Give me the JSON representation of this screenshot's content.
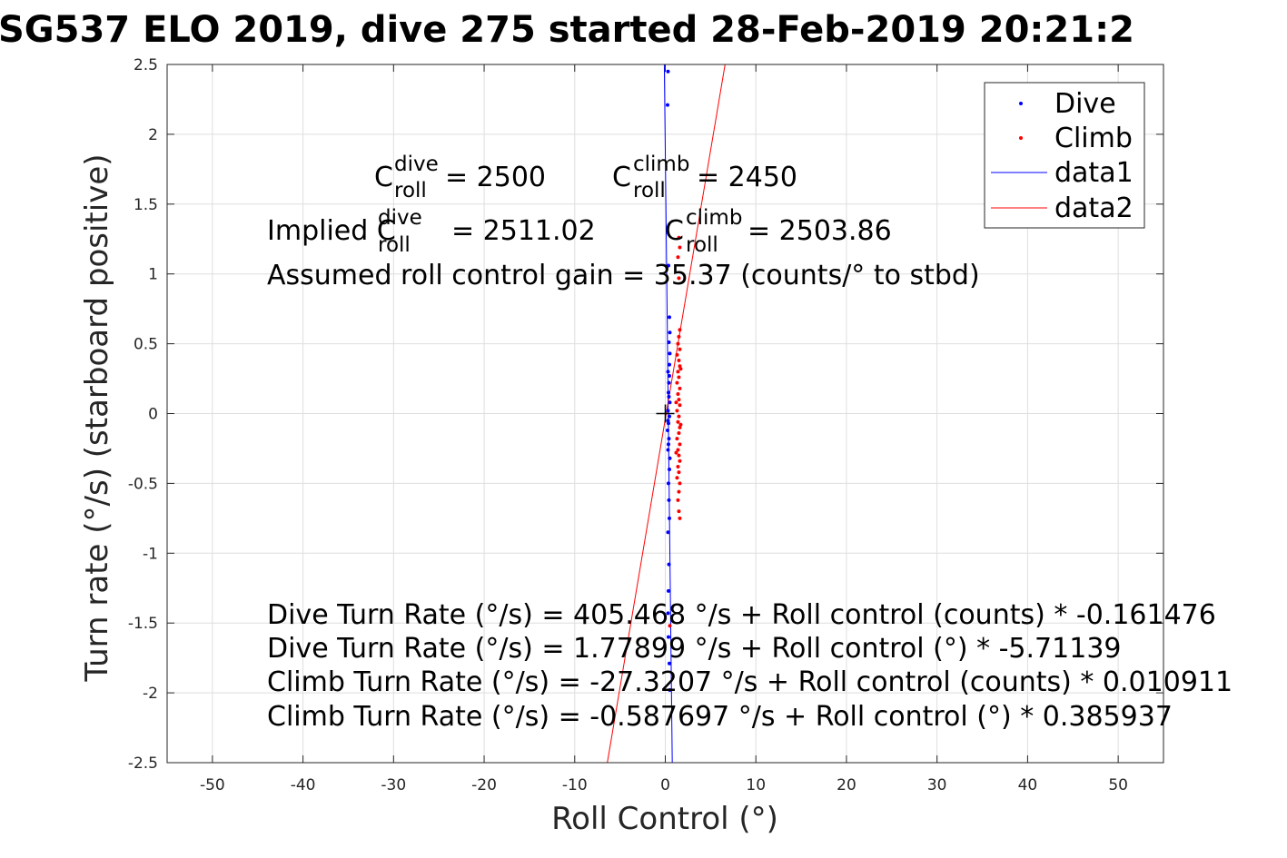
{
  "chart_data": {
    "type": "scatter",
    "title": "SG537 ELO 2019, dive 275 started 28-Feb-2019 20:21:2",
    "xlabel": "Roll Control (°)",
    "ylabel": "Turn rate (°/s) (starboard positive)",
    "xlim": [
      -55,
      55
    ],
    "ylim": [
      -2.5,
      2.5
    ],
    "xticks": [
      -50,
      -40,
      -30,
      -20,
      -10,
      0,
      10,
      20,
      30,
      40,
      50
    ],
    "yticks": [
      -2.5,
      -2,
      -1.5,
      -1,
      -0.5,
      0,
      0.5,
      1,
      1.5,
      2,
      2.5
    ],
    "xtick_labels": [
      "-50",
      "-40",
      "-30",
      "-20",
      "-10",
      "0",
      "10",
      "20",
      "30",
      "40",
      "50"
    ],
    "ytick_labels": [
      "-2.5",
      "-2",
      "-1.5",
      "-1",
      "-0.5",
      "0",
      "0.5",
      "1",
      "1.5",
      "2",
      "2.5"
    ],
    "grid": true,
    "legend_position": "top-right",
    "series": [
      {
        "name": "Dive",
        "kind": "points",
        "color": "#0000ff",
        "points": [
          [
            0.3,
            2.45
          ],
          [
            0.25,
            2.21
          ],
          [
            0.35,
            1.06
          ],
          [
            0.45,
            0.69
          ],
          [
            0.5,
            0.58
          ],
          [
            0.4,
            0.51
          ],
          [
            0.5,
            0.43
          ],
          [
            0.45,
            0.35
          ],
          [
            0.3,
            0.3
          ],
          [
            0.4,
            0.22
          ],
          [
            0.35,
            0.15
          ],
          [
            0.5,
            0.08
          ],
          [
            0.3,
            0.02
          ],
          [
            0.45,
            -0.02
          ],
          [
            0.35,
            -0.07
          ],
          [
            0.25,
            -0.12
          ],
          [
            0.4,
            -0.18
          ],
          [
            0.3,
            -0.26
          ],
          [
            0.5,
            -0.32
          ],
          [
            0.45,
            -0.4
          ],
          [
            0.35,
            -0.5
          ],
          [
            0.4,
            -0.62
          ],
          [
            0.45,
            -0.75
          ],
          [
            0.4,
            -1.08
          ],
          [
            0.35,
            -1.27
          ],
          [
            0.3,
            -1.43
          ],
          [
            0.35,
            -1.6
          ],
          [
            0.45,
            -1.79
          ],
          [
            0.5,
            -1.98
          ],
          [
            0.3,
            -0.85
          ],
          [
            0.4,
            0.12
          ],
          [
            0.35,
            -0.22
          ],
          [
            0.45,
            0.27
          ],
          [
            0.3,
            -0.05
          ]
        ]
      },
      {
        "name": "Climb",
        "kind": "points",
        "color": "#ff0000",
        "points": [
          [
            1.5,
            1.26
          ],
          [
            1.6,
            1.19
          ],
          [
            1.4,
            1.12
          ],
          [
            1.5,
            0.97
          ],
          [
            1.6,
            0.6
          ],
          [
            1.5,
            0.55
          ],
          [
            1.4,
            0.5
          ],
          [
            1.6,
            0.46
          ],
          [
            1.3,
            0.42
          ],
          [
            1.5,
            0.38
          ],
          [
            1.6,
            0.34
          ],
          [
            1.4,
            0.3
          ],
          [
            1.5,
            0.26
          ],
          [
            1.3,
            0.22
          ],
          [
            1.6,
            0.18
          ],
          [
            1.4,
            0.14
          ],
          [
            1.5,
            0.1
          ],
          [
            1.6,
            0.06
          ],
          [
            1.3,
            0.02
          ],
          [
            1.5,
            -0.02
          ],
          [
            1.4,
            -0.06
          ],
          [
            1.6,
            -0.1
          ],
          [
            1.5,
            -0.14
          ],
          [
            1.3,
            -0.18
          ],
          [
            1.6,
            -0.22
          ],
          [
            1.4,
            -0.26
          ],
          [
            1.5,
            -0.3
          ],
          [
            1.6,
            -0.34
          ],
          [
            1.4,
            -0.38
          ],
          [
            1.5,
            -0.42
          ],
          [
            1.3,
            -0.46
          ],
          [
            1.6,
            -0.5
          ],
          [
            1.5,
            -0.56
          ],
          [
            1.4,
            -0.62
          ],
          [
            1.5,
            -0.7
          ],
          [
            1.6,
            -0.75
          ],
          [
            1.2,
            0.08
          ],
          [
            1.7,
            -0.08
          ],
          [
            1.2,
            -0.28
          ],
          [
            1.7,
            0.32
          ],
          [
            0.5,
            -1.52
          ]
        ]
      },
      {
        "name": "data1",
        "kind": "line",
        "color": "#0000ff",
        "points": [
          [
            -0.11,
            2.5
          ],
          [
            0.77,
            -2.5
          ]
        ]
      },
      {
        "name": "data2",
        "kind": "line",
        "color": "#ff0000",
        "points": [
          [
            6.6,
            2.5
          ],
          [
            -6.4,
            -2.5
          ]
        ]
      }
    ],
    "marker": {
      "label": "+",
      "x": 0,
      "y": 0
    },
    "annotations": {
      "c_dive_main": "C",
      "c_dive_sup": "dive",
      "c_dive_sub": "roll",
      "c_dive_val": " = 2500",
      "c_climb_main": "C",
      "c_climb_sup": "climb",
      "c_climb_sub": "roll",
      "c_climb_val": " = 2450",
      "implied_prefix": "Implied C",
      "implied_dive_sup": "dive",
      "implied_dive_sub": "roll",
      "implied_dive_val": " = 2511.02",
      "implied_climb_main": "C",
      "implied_climb_sup": "climb",
      "implied_climb_sub": "roll",
      "implied_climb_val": " = 2503.86",
      "gain": "Assumed roll control gain = 35.37 (counts/° to stbd)",
      "eq1": "Dive Turn Rate (°/s) = 405.468 °/s + Roll control (counts) * -0.161476",
      "eq2": "Dive Turn Rate (°/s) = 1.77899 °/s + Roll control (°) * -5.71139",
      "eq3": "Climb Turn Rate (°/s) = -27.3207 °/s + Roll control (counts) * 0.010911",
      "eq4": "Climb Turn Rate (°/s) = -0.587697 °/s + Roll control (°) * 0.385937"
    }
  }
}
